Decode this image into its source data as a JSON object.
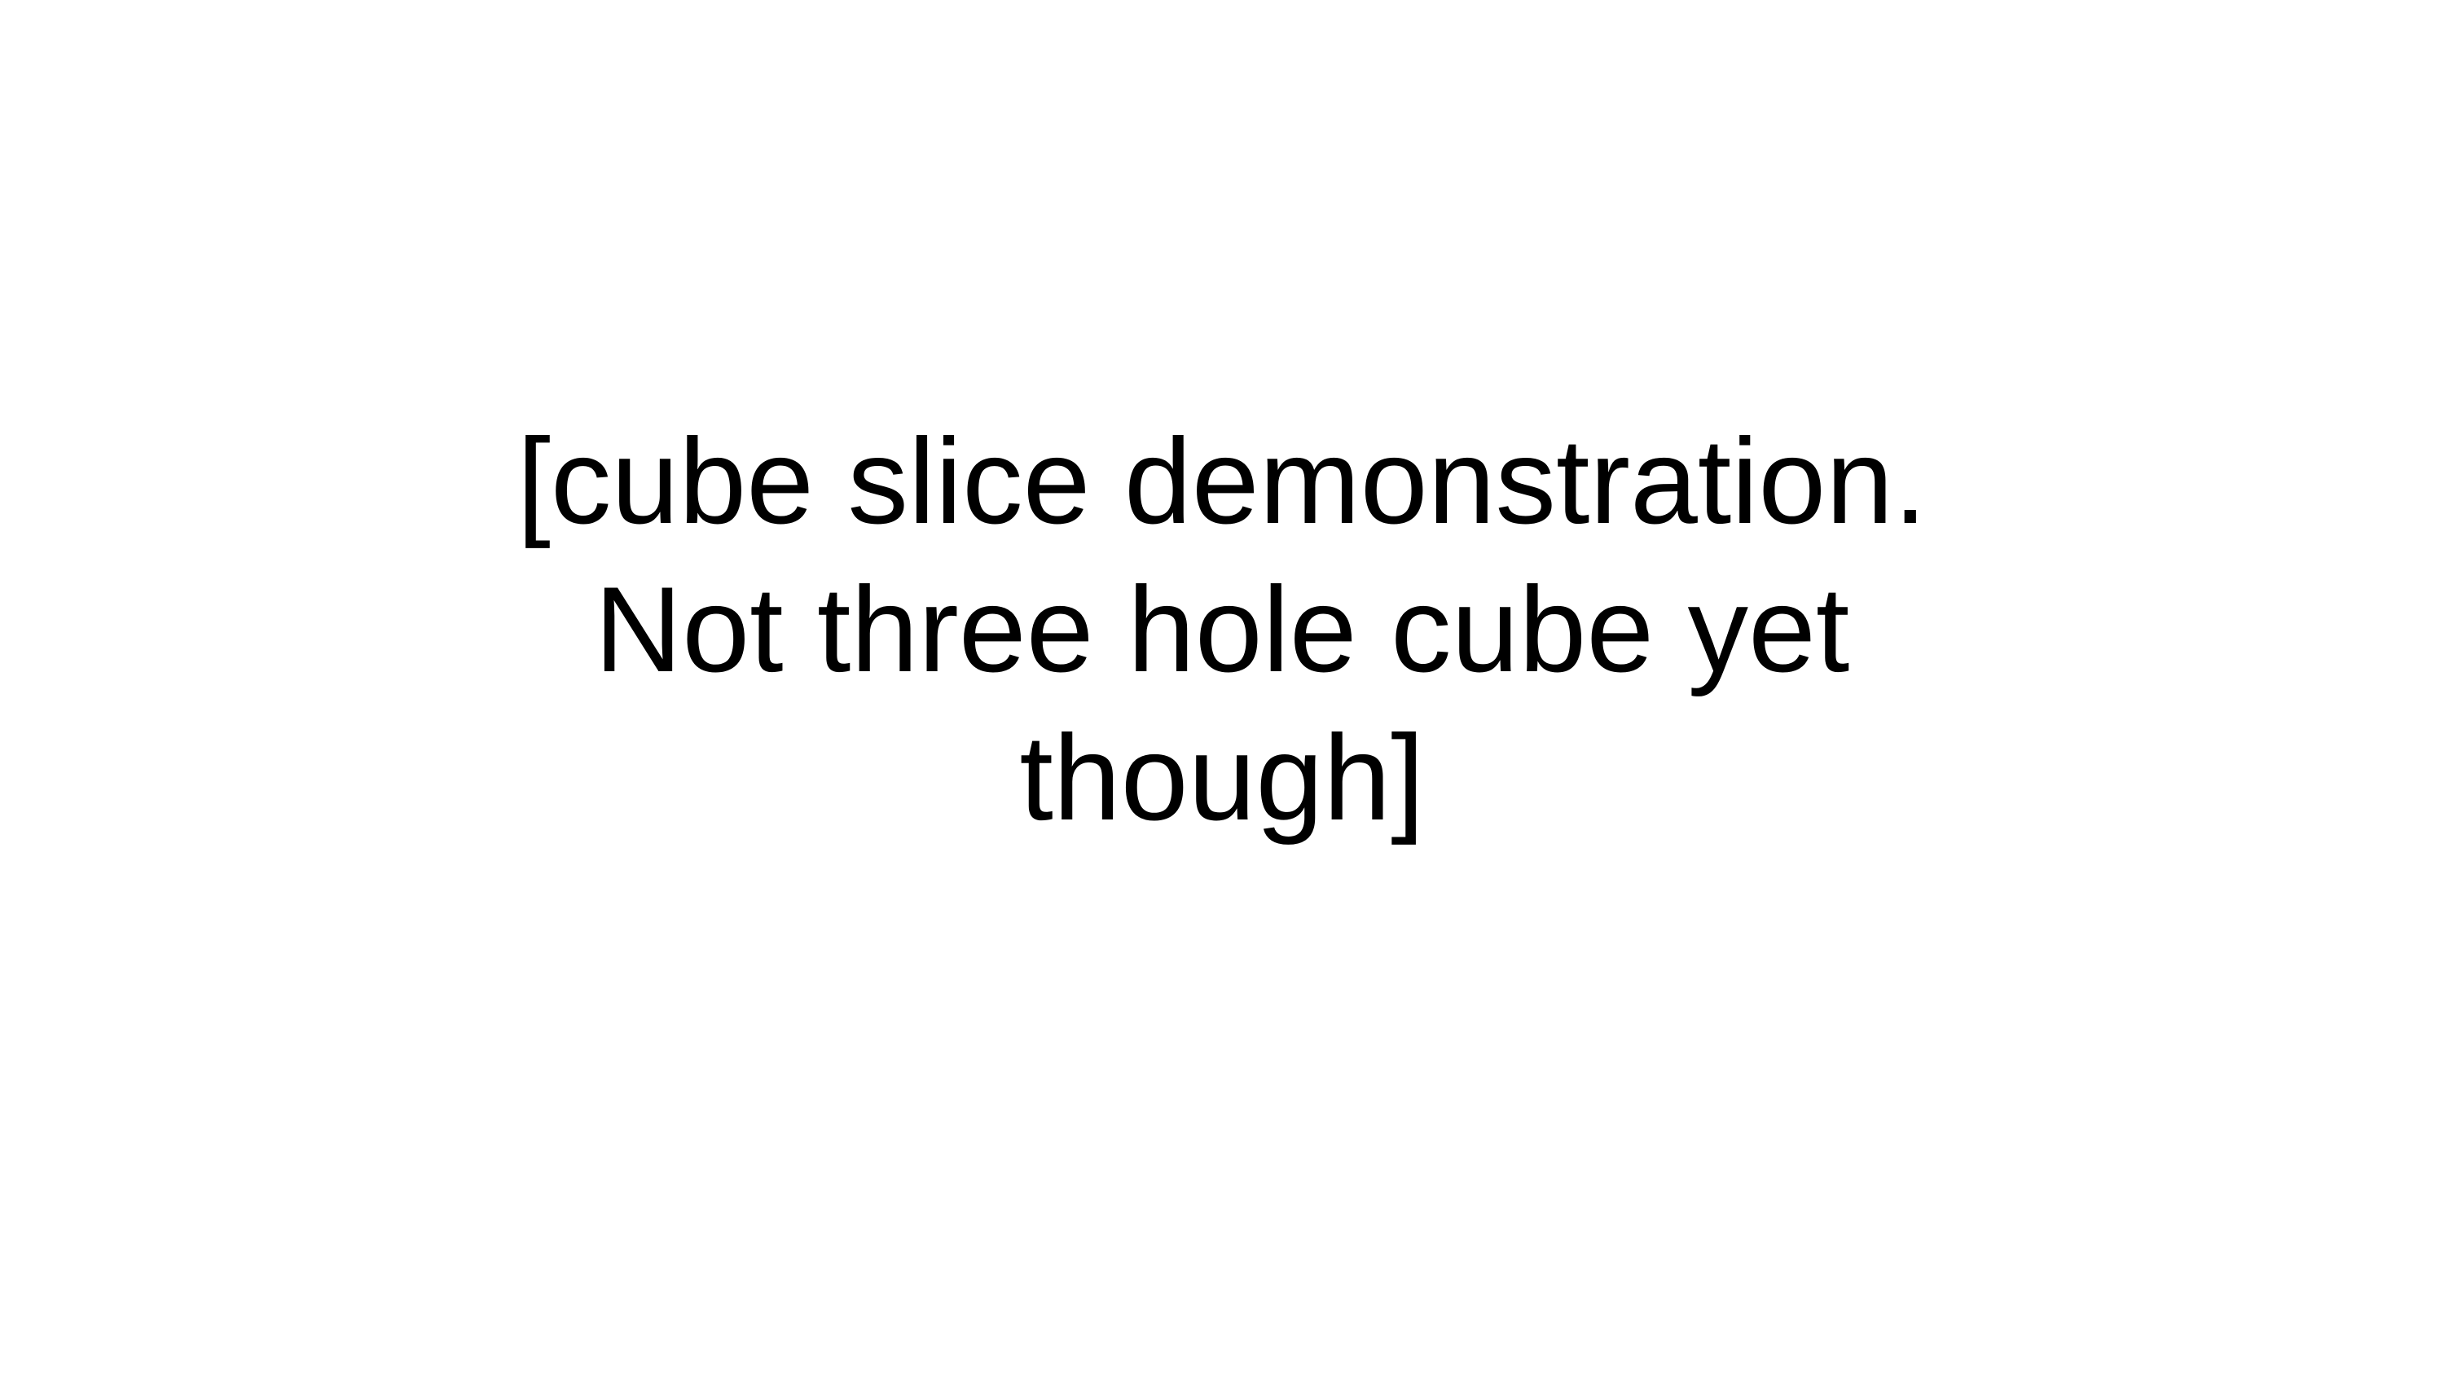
{
  "slide": {
    "text_lines": [
      "[cube slice demonstration.",
      "Not three hole cube yet",
      "though]"
    ],
    "text_color": "#000000",
    "background_color": "#ffffff"
  }
}
